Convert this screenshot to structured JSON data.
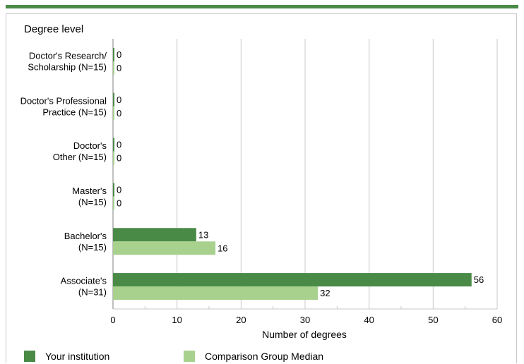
{
  "chart_data": {
    "type": "bar",
    "orientation": "horizontal",
    "title": "Degree level",
    "xlabel": "Number of degrees",
    "xlim": [
      0,
      60
    ],
    "xticks": [
      0,
      10,
      20,
      30,
      40,
      50,
      60
    ],
    "grid": true,
    "legend_placement": "bottom",
    "categories": [
      [
        "Doctor's Research/",
        "Scholarship (N=15)"
      ],
      [
        "Doctor's Professional",
        "Practice (N=15)"
      ],
      [
        "Doctor's",
        "Other (N=15)"
      ],
      [
        "Master's",
        "(N=15)"
      ],
      [
        "Bachelor's",
        "(N=15)"
      ],
      [
        "Associate's",
        "(N=31)"
      ]
    ],
    "series": [
      {
        "name": "Your institution",
        "color": "#4a8a47",
        "values": [
          0,
          0,
          0,
          0,
          13,
          56
        ]
      },
      {
        "name": "Comparison Group Median",
        "color": "#a9d18e",
        "values": [
          0,
          0,
          0,
          0,
          16,
          32
        ]
      }
    ]
  }
}
